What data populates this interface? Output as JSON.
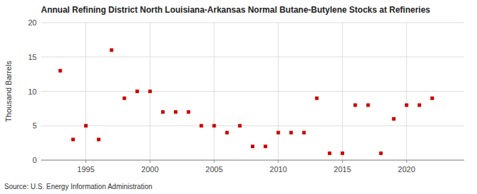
{
  "chart_data": {
    "type": "scatter",
    "title": "Annual Refining District North Louisiana-Arkansas Normal Butane-Butylene Stocks at Refineries",
    "y_label": "Thousand Barrels",
    "source": "Source: U.S. Energy Information Administration",
    "x": [
      1993,
      1994,
      1995,
      1996,
      1997,
      1998,
      1999,
      2000,
      2001,
      2002,
      2003,
      2004,
      2005,
      2006,
      2007,
      2008,
      2009,
      2010,
      2011,
      2012,
      2013,
      2014,
      2015,
      2016,
      2017,
      2018,
      2019,
      2020,
      2021,
      2022
    ],
    "values": [
      13,
      3,
      5,
      3,
      16,
      9,
      10,
      10,
      7,
      7,
      7,
      5,
      5,
      4,
      5,
      2,
      2,
      4,
      4,
      4,
      9,
      1,
      1,
      8,
      8,
      1,
      6,
      8,
      8,
      9
    ],
    "color": "#cc0000",
    "marker": "square",
    "xlim": [
      1991.5,
      2024.5
    ],
    "xticks": [
      1995,
      2000,
      2005,
      2010,
      2015,
      2020
    ],
    "ylim": [
      0,
      20
    ],
    "yticks": [
      0,
      5,
      10,
      15,
      20
    ],
    "grid": true
  }
}
